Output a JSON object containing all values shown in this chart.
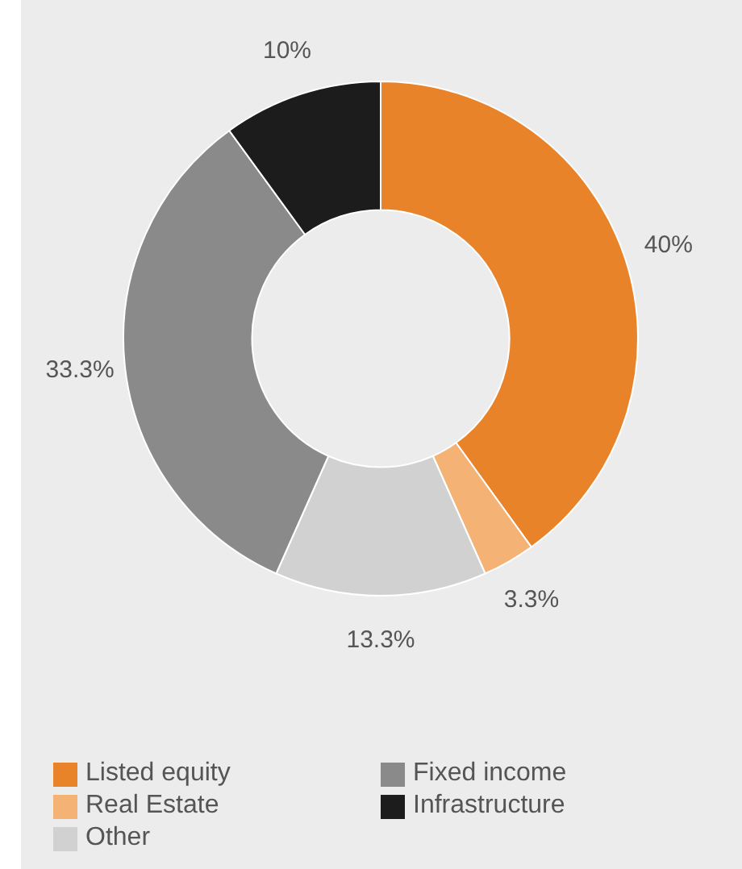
{
  "chart_data": {
    "type": "donut",
    "categories": [
      "Listed equity",
      "Real Estate",
      "Other",
      "Fixed income",
      "Infrastructure"
    ],
    "values": [
      40,
      3.3,
      13.3,
      33.3,
      10
    ],
    "colors": [
      "#e8832a",
      "#f4b375",
      "#d0d1d0",
      "#8a8a8a",
      "#1c1c1c"
    ],
    "value_labels": [
      "40%",
      "3.3%",
      "13.3%",
      "33.3%",
      "10%"
    ],
    "legend": "bottom left"
  }
}
